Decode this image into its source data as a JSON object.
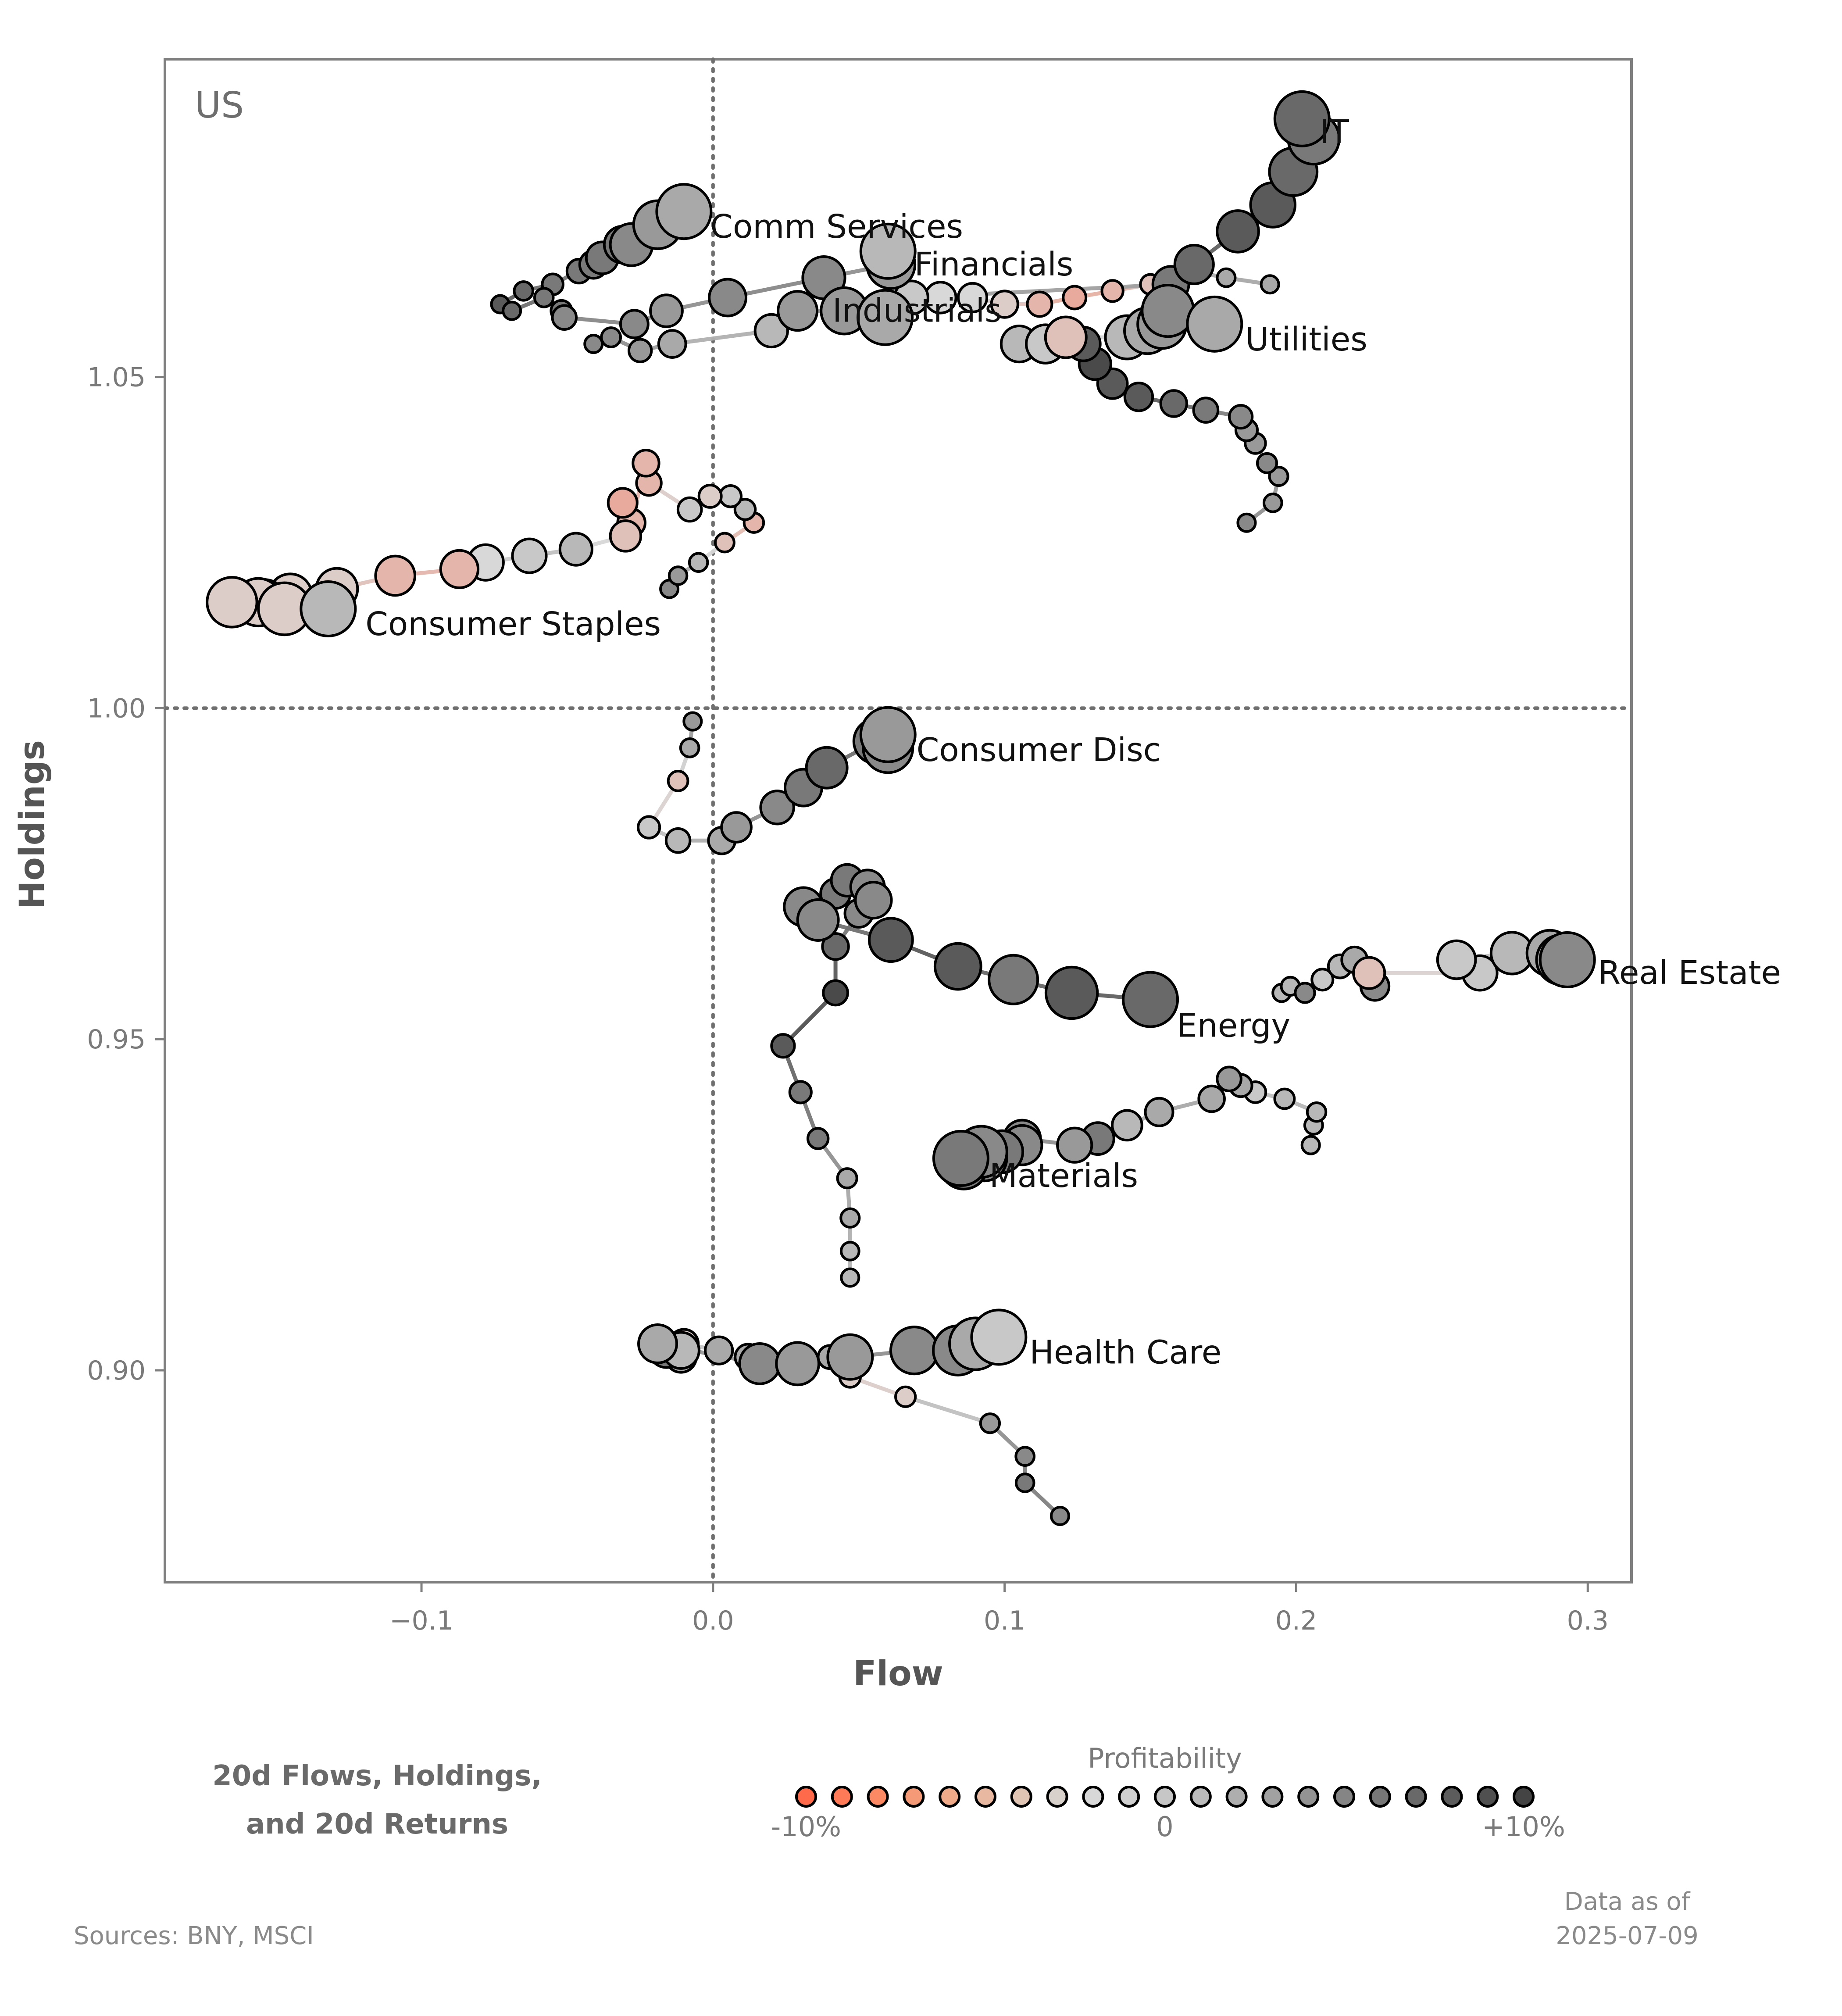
{
  "chart_data": {
    "type": "scatter",
    "subtype": "trail-scatter",
    "panel_label": "US",
    "xlabel": "Flow",
    "ylabel": "Holdings",
    "xlim": [
      -0.188,
      0.315
    ],
    "ylim": [
      0.868,
      1.098
    ],
    "xticks": [
      -0.1,
      0.0,
      0.1,
      0.2,
      0.3
    ],
    "xtick_labels": [
      "−0.1",
      "0.0",
      "0.1",
      "0.2",
      "0.3"
    ],
    "yticks": [
      0.9,
      0.95,
      1.0,
      1.05
    ],
    "ytick_labels": [
      "0.90",
      "0.95",
      "1.00",
      "1.05"
    ],
    "reference_lines": {
      "x": 0.0,
      "y": 1.0,
      "style": "dotted"
    },
    "grid": false,
    "color_encoding": "profitability (20d return), -10% to +10%",
    "series": [
      {
        "name": "IT",
        "points": [
          [
            0.191,
            1.064,
            3
          ],
          [
            0.176,
            1.065,
            3
          ],
          [
            0.164,
            1.066,
            2
          ],
          [
            0.15,
            1.064,
            -2
          ],
          [
            0.137,
            1.063,
            -3
          ],
          [
            0.124,
            1.062,
            -4
          ],
          [
            0.112,
            1.061,
            -3
          ],
          [
            0.1,
            1.061,
            -1
          ],
          [
            0.089,
            1.062,
            0
          ],
          [
            0.078,
            1.062,
            0
          ],
          [
            0.068,
            1.062,
            1
          ],
          [
            0.157,
            1.064,
            6
          ],
          [
            0.165,
            1.067,
            7
          ],
          [
            0.18,
            1.072,
            8
          ],
          [
            0.192,
            1.076,
            8
          ],
          [
            0.199,
            1.081,
            7
          ],
          [
            0.206,
            1.086,
            6
          ],
          [
            0.202,
            1.089,
            7
          ]
        ]
      },
      {
        "name": "Comm Services",
        "points": [
          [
            -0.073,
            1.061,
            8
          ],
          [
            -0.065,
            1.063,
            7
          ],
          [
            -0.055,
            1.064,
            6
          ],
          [
            -0.046,
            1.066,
            6
          ],
          [
            -0.041,
            1.067,
            6
          ],
          [
            -0.038,
            1.068,
            6
          ],
          [
            -0.031,
            1.07,
            6
          ],
          [
            -0.028,
            1.07,
            5
          ],
          [
            -0.019,
            1.073,
            4
          ],
          [
            -0.01,
            1.075,
            3
          ]
        ]
      },
      {
        "name": "Financials",
        "points": [
          [
            -0.069,
            1.06,
            7
          ],
          [
            -0.058,
            1.062,
            6
          ],
          [
            -0.052,
            1.06,
            6
          ],
          [
            -0.051,
            1.059,
            5
          ],
          [
            -0.027,
            1.058,
            5
          ],
          [
            -0.016,
            1.06,
            4
          ],
          [
            0.005,
            1.062,
            5
          ],
          [
            0.038,
            1.065,
            5
          ],
          [
            0.061,
            1.067,
            4
          ],
          [
            0.06,
            1.069,
            2
          ]
        ]
      },
      {
        "name": "Industrials",
        "points": [
          [
            -0.041,
            1.055,
            5
          ],
          [
            -0.035,
            1.056,
            5
          ],
          [
            -0.025,
            1.054,
            4
          ],
          [
            -0.014,
            1.055,
            3
          ],
          [
            0.02,
            1.057,
            2
          ],
          [
            0.029,
            1.06,
            4
          ],
          [
            0.045,
            1.06,
            4
          ],
          [
            0.059,
            1.059,
            3
          ]
        ]
      },
      {
        "name": "Utilities",
        "points": [
          [
            0.183,
            1.028,
            5
          ],
          [
            0.192,
            1.031,
            4
          ],
          [
            0.194,
            1.035,
            4
          ],
          [
            0.19,
            1.037,
            5
          ],
          [
            0.186,
            1.04,
            4
          ],
          [
            0.183,
            1.042,
            4
          ],
          [
            0.181,
            1.044,
            5
          ],
          [
            0.169,
            1.045,
            6
          ],
          [
            0.158,
            1.046,
            7
          ],
          [
            0.146,
            1.047,
            8
          ],
          [
            0.137,
            1.049,
            8
          ],
          [
            0.131,
            1.052,
            9
          ],
          [
            0.127,
            1.055,
            8
          ],
          [
            0.105,
            1.055,
            2
          ],
          [
            0.114,
            1.055,
            1
          ],
          [
            0.121,
            1.056,
            -2
          ],
          [
            0.142,
            1.056,
            2
          ],
          [
            0.149,
            1.057,
            3
          ],
          [
            0.154,
            1.058,
            4
          ],
          [
            0.156,
            1.06,
            5
          ],
          [
            0.172,
            1.058,
            3
          ]
        ]
      },
      {
        "name": "Consumer Staples",
        "points": [
          [
            -0.015,
            1.018,
            5
          ],
          [
            -0.012,
            1.02,
            4
          ],
          [
            -0.005,
            1.022,
            2
          ],
          [
            0.004,
            1.025,
            -2
          ],
          [
            0.014,
            1.028,
            -3
          ],
          [
            0.011,
            1.03,
            2
          ],
          [
            0.006,
            1.032,
            1
          ],
          [
            -0.001,
            1.032,
            -1
          ],
          [
            -0.008,
            1.03,
            1
          ],
          [
            -0.022,
            1.034,
            -3
          ],
          [
            -0.023,
            1.037,
            -3
          ],
          [
            -0.028,
            1.028,
            -3
          ],
          [
            -0.031,
            1.031,
            -4
          ],
          [
            -0.03,
            1.026,
            -2
          ],
          [
            -0.047,
            1.024,
            2
          ],
          [
            -0.063,
            1.023,
            1
          ],
          [
            -0.078,
            1.022,
            0
          ],
          [
            -0.087,
            1.021,
            -3
          ],
          [
            -0.109,
            1.02,
            -3
          ],
          [
            -0.129,
            1.018,
            -1
          ],
          [
            -0.145,
            1.017,
            -1
          ],
          [
            -0.154,
            1.016,
            -1
          ],
          [
            -0.156,
            1.016,
            -1
          ],
          [
            -0.165,
            1.016,
            -1
          ],
          [
            -0.147,
            1.015,
            -1
          ],
          [
            -0.132,
            1.015,
            2
          ]
        ]
      },
      {
        "name": "Consumer Disc",
        "points": [
          [
            -0.007,
            0.998,
            4
          ],
          [
            -0.008,
            0.994,
            3
          ],
          [
            -0.012,
            0.989,
            -2
          ],
          [
            -0.022,
            0.982,
            1
          ],
          [
            -0.012,
            0.98,
            2
          ],
          [
            0.003,
            0.98,
            3
          ],
          [
            0.008,
            0.982,
            4
          ],
          [
            0.022,
            0.985,
            5
          ],
          [
            0.031,
            0.988,
            6
          ],
          [
            0.039,
            0.991,
            7
          ],
          [
            0.056,
            0.995,
            6
          ],
          [
            0.06,
            0.994,
            5
          ],
          [
            0.06,
            0.996,
            4
          ]
        ]
      },
      {
        "name": "Energy",
        "points": [
          [
            0.047,
            0.914,
            2
          ],
          [
            0.047,
            0.918,
            2
          ],
          [
            0.047,
            0.923,
            3
          ],
          [
            0.046,
            0.929,
            3
          ],
          [
            0.036,
            0.935,
            6
          ],
          [
            0.03,
            0.942,
            6
          ],
          [
            0.024,
            0.949,
            8
          ],
          [
            0.042,
            0.957,
            9
          ],
          [
            0.042,
            0.964,
            7
          ],
          [
            0.05,
            0.969,
            5
          ],
          [
            0.042,
            0.972,
            6
          ],
          [
            0.046,
            0.974,
            6
          ],
          [
            0.053,
            0.973,
            5
          ],
          [
            0.055,
            0.971,
            5
          ],
          [
            0.031,
            0.97,
            5
          ],
          [
            0.036,
            0.968,
            5
          ],
          [
            0.061,
            0.965,
            8
          ],
          [
            0.084,
            0.961,
            8
          ],
          [
            0.103,
            0.959,
            6
          ],
          [
            0.123,
            0.957,
            8
          ],
          [
            0.15,
            0.956,
            7
          ]
        ]
      },
      {
        "name": "Real Estate",
        "points": [
          [
            0.195,
            0.957,
            2
          ],
          [
            0.198,
            0.958,
            2
          ],
          [
            0.203,
            0.957,
            5
          ],
          [
            0.209,
            0.959,
            1
          ],
          [
            0.215,
            0.961,
            2
          ],
          [
            0.22,
            0.962,
            3
          ],
          [
            0.227,
            0.958,
            5
          ],
          [
            0.225,
            0.96,
            -2
          ],
          [
            0.263,
            0.96,
            1
          ],
          [
            0.255,
            0.962,
            1
          ],
          [
            0.274,
            0.963,
            2
          ],
          [
            0.287,
            0.963,
            3
          ],
          [
            0.291,
            0.962,
            4
          ],
          [
            0.293,
            0.962,
            5
          ]
        ]
      },
      {
        "name": "Materials",
        "points": [
          [
            0.205,
            0.934,
            2
          ],
          [
            0.206,
            0.937,
            2
          ],
          [
            0.207,
            0.939,
            2
          ],
          [
            0.196,
            0.941,
            2
          ],
          [
            0.186,
            0.942,
            1
          ],
          [
            0.181,
            0.943,
            3
          ],
          [
            0.177,
            0.944,
            4
          ],
          [
            0.171,
            0.941,
            3
          ],
          [
            0.153,
            0.939,
            3
          ],
          [
            0.142,
            0.937,
            2
          ],
          [
            0.132,
            0.935,
            6
          ],
          [
            0.124,
            0.934,
            4
          ],
          [
            0.106,
            0.935,
            5
          ],
          [
            0.106,
            0.934,
            5
          ],
          [
            0.099,
            0.933,
            6
          ],
          [
            0.093,
            0.932,
            5
          ],
          [
            0.086,
            0.931,
            6
          ],
          [
            0.092,
            0.933,
            5
          ],
          [
            0.085,
            0.932,
            6
          ]
        ]
      },
      {
        "name": "Health Care",
        "points": [
          [
            0.119,
            0.878,
            5
          ],
          [
            0.107,
            0.883,
            6
          ],
          [
            0.107,
            0.887,
            5
          ],
          [
            0.095,
            0.892,
            4
          ],
          [
            0.066,
            0.896,
            -1
          ],
          [
            0.047,
            0.899,
            -1
          ],
          [
            0.047,
            0.901,
            1
          ],
          [
            0.04,
            0.902,
            3
          ],
          [
            0.014,
            0.901,
            4
          ],
          [
            0.012,
            0.902,
            3
          ],
          [
            0.002,
            0.903,
            3
          ],
          [
            -0.01,
            0.904,
            -1
          ],
          [
            -0.011,
            0.902,
            3
          ],
          [
            -0.014,
            0.903,
            3
          ],
          [
            -0.016,
            0.903,
            6
          ],
          [
            -0.011,
            0.903,
            2
          ],
          [
            -0.019,
            0.904,
            3
          ],
          [
            0.016,
            0.901,
            5
          ],
          [
            0.029,
            0.901,
            4
          ],
          [
            0.047,
            0.902,
            4
          ],
          [
            0.069,
            0.903,
            5
          ],
          [
            0.084,
            0.903,
            5
          ],
          [
            0.09,
            0.904,
            3
          ],
          [
            0.098,
            0.905,
            1
          ]
        ]
      }
    ],
    "legend": {
      "title": "Profitability",
      "min_label": "-10%",
      "mid_label": "0",
      "max_label": "+10%",
      "colors": [
        "#ff6b4a",
        "#ff7a56",
        "#fb8964",
        "#f59a76",
        "#efaa8a",
        "#e8b8a0",
        "#e0c5b5",
        "#d8d1cb",
        "#d8d8d8",
        "#d0d0d0",
        "#c6c6c6",
        "#bbbbbb",
        "#aeaeae",
        "#a1a1a1",
        "#939393",
        "#858585",
        "#777777",
        "#696969",
        "#5c5c5c",
        "#505050",
        "#444444"
      ]
    }
  },
  "subtitle_lines": [
    "20d Flows, Holdings,",
    "and 20d Returns"
  ],
  "footer": {
    "sources": "Sources:  BNY, MSCI",
    "date_line1": "Data as of",
    "date_line2": "2025-07-09"
  },
  "label_offsets_note": ""
}
